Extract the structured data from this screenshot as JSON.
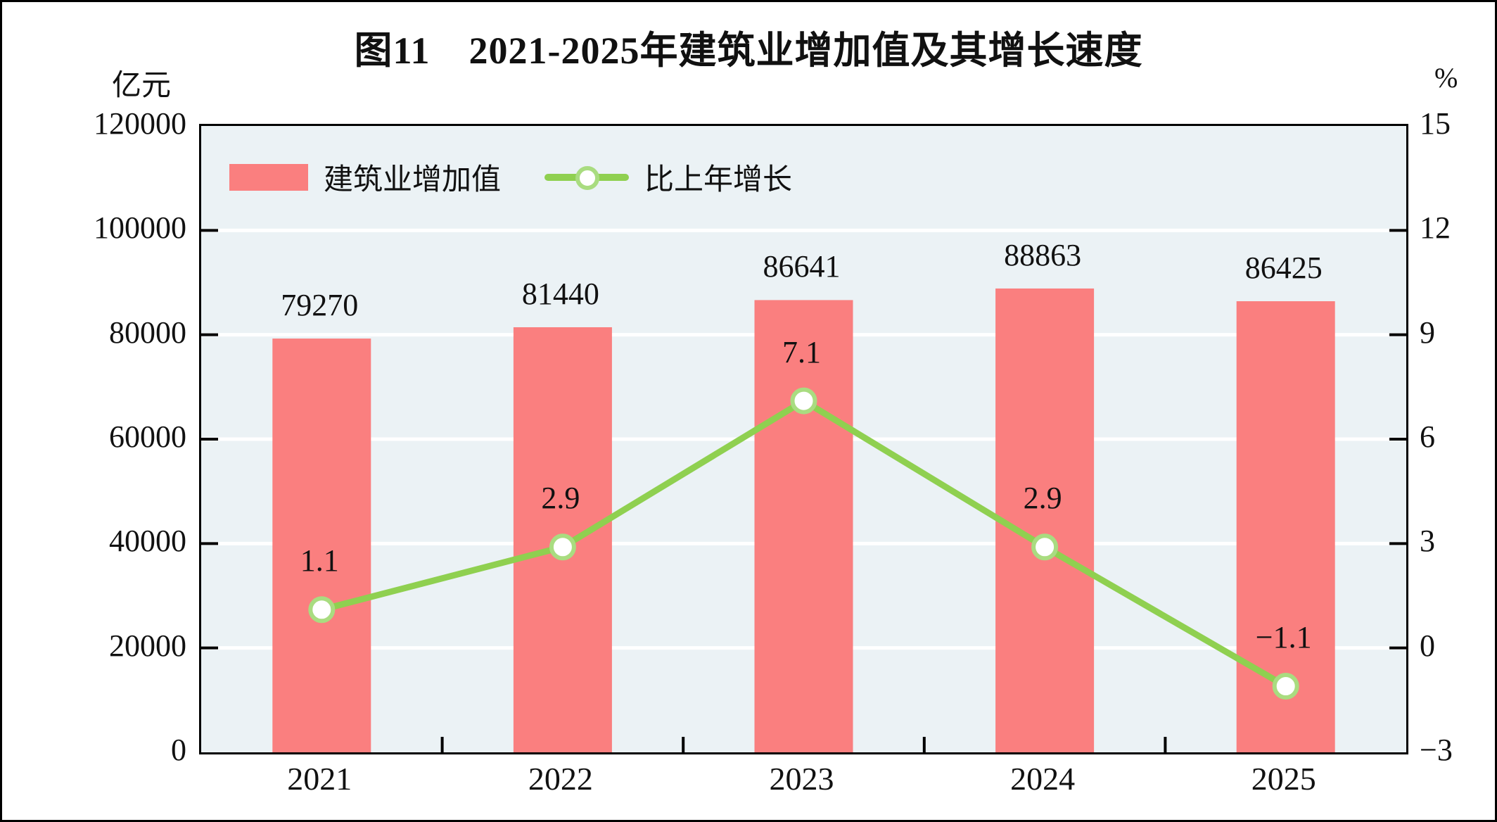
{
  "figure": {
    "title": "图11　2021-2025年建筑业增加值及其增长速度"
  },
  "chart_data": {
    "type": "combo-bar-line",
    "title": "图11　2021-2025年建筑业增加值及其增长速度",
    "categories": [
      "2021",
      "2022",
      "2023",
      "2024",
      "2025"
    ],
    "left_axis": {
      "unit": "亿元",
      "min": 0,
      "max": 120000,
      "step": 20000,
      "tick_labels": [
        "0",
        "20000",
        "40000",
        "60000",
        "80000",
        "100000",
        "120000"
      ]
    },
    "right_axis": {
      "unit": "%",
      "min": -3,
      "max": 15,
      "step": 3,
      "tick_labels": [
        "−3",
        "0",
        "3",
        "6",
        "9",
        "12",
        "15"
      ]
    },
    "series": [
      {
        "name": "建筑业增加值",
        "type": "bar",
        "axis": "left",
        "color": "#FA7F7F",
        "values": [
          79270,
          81440,
          86641,
          88863,
          86425
        ],
        "labels": [
          "79270",
          "81440",
          "86641",
          "88863",
          "86425"
        ]
      },
      {
        "name": "比上年增长",
        "type": "line",
        "axis": "right",
        "color": "#8FD050",
        "marker_ring_color": "#A9DC80",
        "values": [
          1.1,
          2.9,
          7.1,
          2.9,
          -1.1
        ],
        "labels": [
          "1.1",
          "2.9",
          "7.1",
          "2.9",
          "−1.1"
        ]
      }
    ],
    "legend": [
      "建筑业增加值",
      "比上年增长"
    ],
    "legend_position": "top-left-inside",
    "plot_background": "#EBF2F5",
    "gridline_color": "#FFFFFF",
    "grid": "horizontal-only"
  }
}
